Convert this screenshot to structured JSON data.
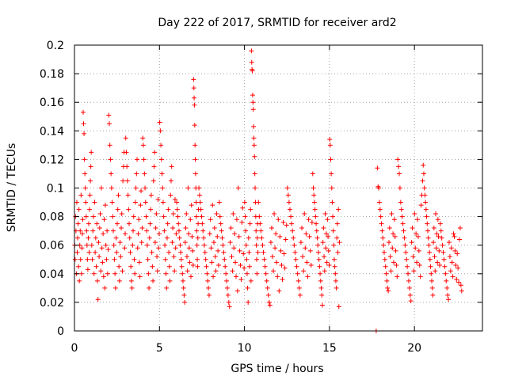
{
  "chart_data": {
    "type": "scatter",
    "title": "Day 222 of 2017, SRMTID for receiver ard2",
    "xlabel": "GPS time / hours",
    "ylabel": "SRMTID / TECUs",
    "xlim": [
      0,
      24
    ],
    "ylim": [
      0,
      0.2
    ],
    "x_ticks": [
      0,
      5,
      10,
      15,
      20
    ],
    "y_ticks": [
      0,
      0.02,
      0.04,
      0.06,
      0.08,
      0.1,
      0.12,
      0.14,
      0.16,
      0.18,
      0.2
    ],
    "x_tick_labels": [
      "0",
      "5",
      "10",
      "15",
      "20"
    ],
    "y_tick_labels": [
      "0",
      "0.02",
      "0.04",
      "0.06",
      "0.08",
      "0.1",
      "0.12",
      "0.14",
      "0.16",
      "0.18",
      "0.2"
    ],
    "grid": true,
    "marker": "plus",
    "color": "#ff0000",
    "series": [
      {
        "name": "SRMTID",
        "description": "dense scatter, values estimated per time block",
        "blocks": [
          {
            "t0": 0.0,
            "t1": 0.5,
            "values": [
              0.06,
              0.05,
              0.08,
              0.07,
              0.04,
              0.09,
              0.055,
              0.065,
              0.075,
              0.045,
              0.085,
              0.035,
              0.06,
              0.07,
              0.05,
              0.095,
              0.04,
              0.058,
              0.068,
              0.078
            ]
          },
          {
            "t0": 0.5,
            "t1": 1.0,
            "values": [
              0.153,
              0.145,
              0.138,
              0.12,
              0.11,
              0.1,
              0.09,
              0.08,
              0.07,
              0.06,
              0.05,
              0.043,
              0.065,
              0.075,
              0.055,
              0.085,
              0.095,
              0.105,
              0.115,
              0.125
            ]
          },
          {
            "t0": 1.0,
            "t1": 2.0,
            "values": [
              0.06,
              0.05,
              0.07,
              0.08,
              0.04,
              0.09,
              0.055,
              0.065,
              0.045,
              0.075,
              0.035,
              0.022,
              0.062,
              0.052,
              0.072,
              0.082,
              0.042,
              0.1,
              0.058,
              0.048,
              0.068,
              0.038,
              0.078,
              0.03,
              0.088,
              0.06,
              0.05,
              0.07,
              0.04,
              0.057
            ]
          },
          {
            "t0": 2.0,
            "t1": 3.0,
            "values": [
              0.151,
              0.145,
              0.13,
              0.12,
              0.11,
              0.1,
              0.09,
              0.08,
              0.07,
              0.06,
              0.05,
              0.04,
              0.03,
              0.065,
              0.055,
              0.075,
              0.085,
              0.095,
              0.045,
              0.035,
              0.062,
              0.052,
              0.072,
              0.082,
              0.042,
              0.105,
              0.115,
              0.125,
              0.058,
              0.068
            ]
          },
          {
            "t0": 3.0,
            "t1": 4.0,
            "values": [
              0.135,
              0.125,
              0.115,
              0.105,
              0.095,
              0.085,
              0.075,
              0.065,
              0.055,
              0.045,
              0.035,
              0.03,
              0.06,
              0.07,
              0.08,
              0.05,
              0.04,
              0.09,
              0.1,
              0.11,
              0.12,
              0.058,
              0.068,
              0.078,
              0.048,
              0.038,
              0.088,
              0.098,
              0.062,
              0.072
            ]
          },
          {
            "t0": 4.0,
            "t1": 5.0,
            "values": [
              0.135,
              0.13,
              0.12,
              0.11,
              0.1,
              0.09,
              0.08,
              0.07,
              0.06,
              0.05,
              0.04,
              0.03,
              0.065,
              0.075,
              0.085,
              0.095,
              0.055,
              0.045,
              0.035,
              0.105,
              0.115,
              0.125,
              0.062,
              0.072,
              0.082,
              0.052,
              0.042,
              0.092,
              0.058,
              0.068
            ]
          },
          {
            "t0": 5.0,
            "t1": 6.0,
            "values": [
              0.146,
              0.14,
              0.13,
              0.12,
              0.11,
              0.1,
              0.09,
              0.08,
              0.07,
              0.06,
              0.05,
              0.04,
              0.03,
              0.065,
              0.075,
              0.085,
              0.055,
              0.045,
              0.035,
              0.095,
              0.105,
              0.115,
              0.062,
              0.072,
              0.082,
              0.052,
              0.042,
              0.092,
              0.058,
              0.068
            ]
          },
          {
            "t0": 6.0,
            "t1": 7.0,
            "values": [
              0.09,
              0.085,
              0.08,
              0.075,
              0.07,
              0.065,
              0.06,
              0.055,
              0.05,
              0.045,
              0.04,
              0.035,
              0.03,
              0.025,
              0.02,
              0.062,
              0.072,
              0.082,
              0.052,
              0.042,
              0.1,
              0.068,
              0.058,
              0.048,
              0.078,
              0.038,
              0.088,
              0.066,
              0.056,
              0.046
            ]
          },
          {
            "t0": 7.0,
            "t1": 7.3,
            "values": [
              0.176,
              0.17,
              0.163,
              0.158,
              0.144,
              0.13,
              0.12,
              0.11,
              0.1,
              0.09,
              0.08,
              0.07,
              0.06,
              0.05,
              0.045,
              0.065,
              0.075,
              0.085
            ]
          },
          {
            "t0": 7.3,
            "t1": 8.5,
            "values": [
              0.1,
              0.095,
              0.09,
              0.085,
              0.08,
              0.075,
              0.07,
              0.065,
              0.06,
              0.055,
              0.05,
              0.045,
              0.04,
              0.035,
              0.03,
              0.025,
              0.068,
              0.078,
              0.058,
              0.048,
              0.088,
              0.038,
              0.062,
              0.072,
              0.052,
              0.042,
              0.082,
              0.066,
              0.056,
              0.046
            ]
          },
          {
            "t0": 8.5,
            "t1": 10.0,
            "values": [
              0.09,
              0.08,
              0.075,
              0.07,
              0.065,
              0.06,
              0.055,
              0.05,
              0.045,
              0.04,
              0.035,
              0.03,
              0.025,
              0.02,
              0.017,
              0.062,
              0.072,
              0.052,
              0.042,
              0.082,
              0.058,
              0.068,
              0.048,
              0.038,
              0.078,
              0.028,
              0.1,
              0.066,
              0.056,
              0.046,
              0.036,
              0.076,
              0.086,
              0.054,
              0.044
            ]
          },
          {
            "t0": 10.0,
            "t1": 10.4,
            "values": [
              0.09,
              0.08,
              0.07,
              0.06,
              0.05,
              0.04,
              0.03,
              0.02,
              0.065,
              0.055,
              0.045,
              0.075,
              0.085,
              0.035
            ]
          },
          {
            "t0": 10.4,
            "t1": 10.8,
            "values": [
              0.196,
              0.188,
              0.183,
              0.182,
              0.165,
              0.16,
              0.155,
              0.143,
              0.135,
              0.13,
              0.122,
              0.11,
              0.1,
              0.09,
              0.08,
              0.07,
              0.06,
              0.05,
              0.04,
              0.065,
              0.075,
              0.055
            ]
          },
          {
            "t0": 10.8,
            "t1": 12.5,
            "values": [
              0.09,
              0.08,
              0.075,
              0.07,
              0.065,
              0.06,
              0.055,
              0.05,
              0.045,
              0.04,
              0.035,
              0.03,
              0.025,
              0.02,
              0.018,
              0.062,
              0.072,
              0.052,
              0.042,
              0.082,
              0.058,
              0.068,
              0.048,
              0.038,
              0.078,
              0.028,
              0.066,
              0.056,
              0.046,
              0.036,
              0.076,
              0.054,
              0.044,
              0.064,
              0.074
            ]
          },
          {
            "t0": 12.5,
            "t1": 14.0,
            "values": [
              0.1,
              0.095,
              0.09,
              0.085,
              0.08,
              0.075,
              0.07,
              0.065,
              0.06,
              0.055,
              0.05,
              0.045,
              0.04,
              0.035,
              0.03,
              0.025,
              0.062,
              0.072,
              0.052,
              0.042,
              0.082,
              0.058,
              0.068,
              0.048,
              0.038,
              0.078,
              0.066,
              0.056,
              0.046,
              0.076
            ]
          },
          {
            "t0": 14.0,
            "t1": 15.0,
            "values": [
              0.11,
              0.1,
              0.095,
              0.09,
              0.085,
              0.08,
              0.075,
              0.07,
              0.065,
              0.06,
              0.055,
              0.05,
              0.045,
              0.04,
              0.035,
              0.03,
              0.025,
              0.018,
              0.062,
              0.072,
              0.052,
              0.042,
              0.082,
              0.058,
              0.068,
              0.048,
              0.078,
              0.066,
              0.056,
              0.046
            ]
          },
          {
            "t0": 15.0,
            "t1": 15.6,
            "values": [
              0.134,
              0.13,
              0.12,
              0.11,
              0.1,
              0.09,
              0.08,
              0.07,
              0.06,
              0.05,
              0.045,
              0.04,
              0.035,
              0.03,
              0.065,
              0.075,
              0.055,
              0.085,
              0.017,
              0.062
            ]
          },
          {
            "t0": 17.7,
            "t1": 17.8,
            "values": [
              0.0
            ]
          },
          {
            "t0": 17.8,
            "t1": 19.0,
            "values": [
              0.114,
              0.101,
              0.1,
              0.09,
              0.085,
              0.08,
              0.075,
              0.07,
              0.065,
              0.06,
              0.055,
              0.05,
              0.045,
              0.04,
              0.035,
              0.03,
              0.028,
              0.062,
              0.072,
              0.052,
              0.042,
              0.082,
              0.058,
              0.068,
              0.048,
              0.078,
              0.066,
              0.056,
              0.046,
              0.038
            ]
          },
          {
            "t0": 19.0,
            "t1": 20.5,
            "values": [
              0.12,
              0.115,
              0.11,
              0.1,
              0.09,
              0.085,
              0.08,
              0.075,
              0.07,
              0.065,
              0.06,
              0.055,
              0.05,
              0.045,
              0.04,
              0.035,
              0.03,
              0.025,
              0.021,
              0.062,
              0.072,
              0.052,
              0.042,
              0.082,
              0.058,
              0.068,
              0.048,
              0.078,
              0.066,
              0.056,
              0.046,
              0.038,
              0.088,
              0.095,
              0.105
            ]
          },
          {
            "t0": 20.5,
            "t1": 21.5,
            "values": [
              0.116,
              0.11,
              0.1,
              0.095,
              0.09,
              0.085,
              0.08,
              0.075,
              0.07,
              0.065,
              0.06,
              0.055,
              0.05,
              0.045,
              0.04,
              0.035,
              0.03,
              0.025,
              0.062,
              0.072,
              0.052,
              0.042,
              0.082,
              0.058,
              0.068,
              0.048,
              0.078,
              0.066,
              0.056,
              0.046
            ]
          },
          {
            "t0": 21.5,
            "t1": 22.8,
            "values": [
              0.075,
              0.07,
              0.065,
              0.06,
              0.055,
              0.05,
              0.045,
              0.04,
              0.035,
              0.03,
              0.025,
              0.022,
              0.062,
              0.052,
              0.042,
              0.058,
              0.048,
              0.038,
              0.068,
              0.066,
              0.056,
              0.046,
              0.036,
              0.054,
              0.044,
              0.034,
              0.064,
              0.072,
              0.032,
              0.028
            ]
          }
        ]
      }
    ]
  }
}
